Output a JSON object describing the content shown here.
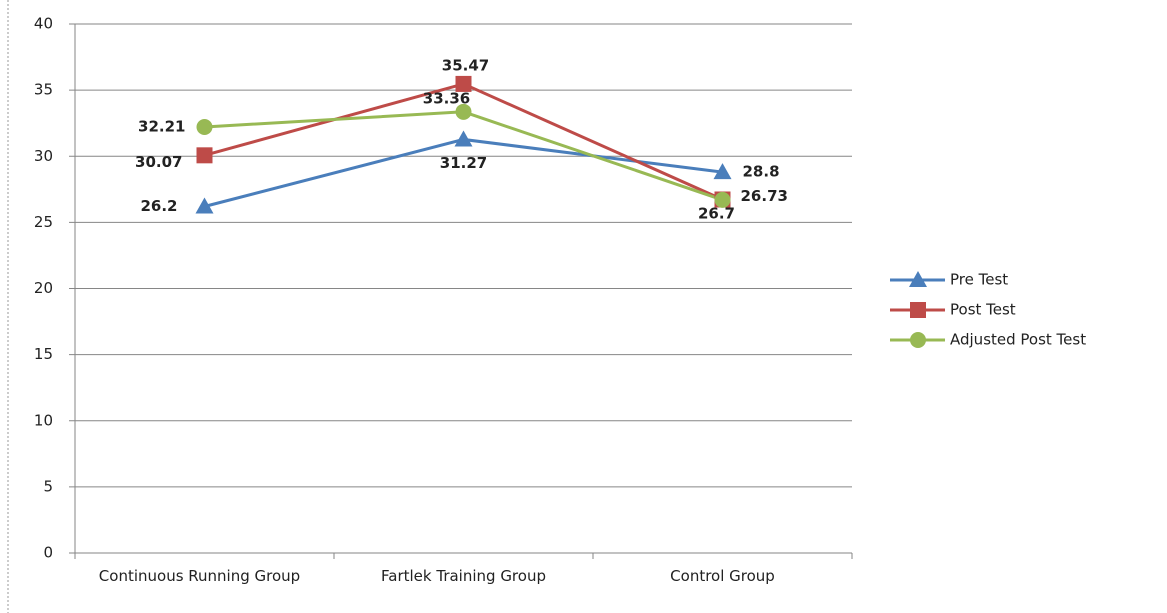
{
  "chart_data": {
    "type": "line",
    "categories": [
      "Continuous Running Group",
      "Fartlek Training Group",
      "Control Group"
    ],
    "series": [
      {
        "name": "Pre Test",
        "color": "#4a7ebb",
        "label_color": "#2e75b6",
        "marker": "triangle",
        "values": [
          26.2,
          31.27,
          28.8
        ]
      },
      {
        "name": "Post Test",
        "color": "#be4b48",
        "label_color": "#c00000",
        "marker": "square",
        "values": [
          30.07,
          35.47,
          26.73
        ]
      },
      {
        "name": "Adjusted Post Test",
        "color": "#98b954",
        "label_color": "#92d050",
        "marker": "circle",
        "values": [
          32.21,
          33.36,
          26.7
        ]
      }
    ],
    "ylim": [
      0,
      40
    ],
    "yticks": [
      0,
      5,
      10,
      15,
      20,
      25,
      30,
      35,
      40
    ],
    "grid": true,
    "legend": "right"
  }
}
